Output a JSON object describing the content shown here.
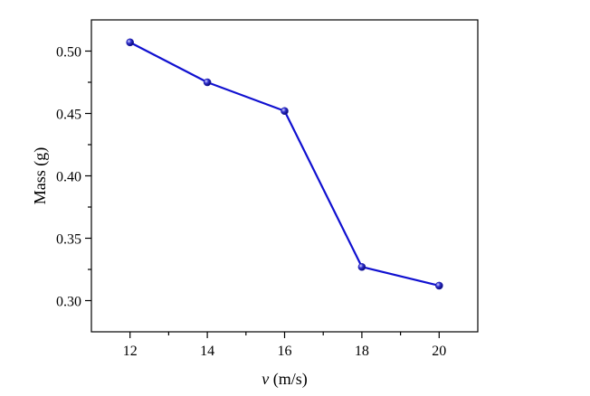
{
  "chart_data": {
    "type": "line",
    "title": "",
    "xlabel_var": "v",
    "xlabel_unit": " (m/s)",
    "ylabel": "Mass (g)",
    "xlim": [
      11,
      21
    ],
    "ylim": [
      0.275,
      0.525
    ],
    "x_ticks": [
      12,
      14,
      16,
      18,
      20
    ],
    "x_tick_labels": [
      "12",
      "14",
      "16",
      "18",
      "20"
    ],
    "y_ticks": [
      0.3,
      0.35,
      0.4,
      0.45,
      0.5
    ],
    "y_tick_labels": [
      "0.30",
      "0.35",
      "0.40",
      "0.45",
      "0.50"
    ],
    "x_minor_ticks": [
      13,
      15,
      17,
      19
    ],
    "y_minor_ticks": [
      0.325,
      0.375,
      0.425,
      0.475
    ],
    "grid": false,
    "legend": "none",
    "series": [
      {
        "x": [
          12,
          14,
          16,
          18,
          20
        ],
        "values": [
          0.507,
          0.475,
          0.452,
          0.327,
          0.312
        ],
        "color": "#1010d0",
        "marker_color": "#1a1aa8"
      }
    ]
  }
}
